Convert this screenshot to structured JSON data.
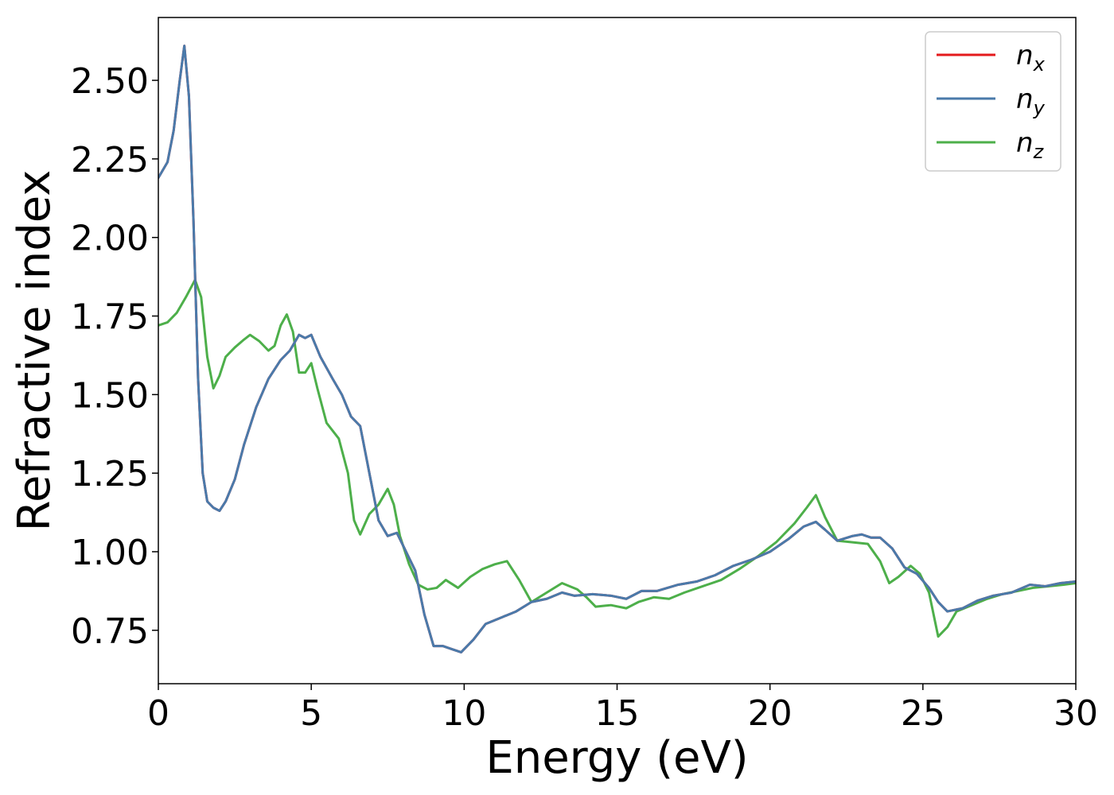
{
  "chart_data": {
    "type": "line",
    "title": "",
    "xlabel": "Energy (eV)",
    "ylabel": "Refractive index",
    "xlim": [
      0,
      30
    ],
    "ylim": [
      0.58,
      2.7
    ],
    "xticks": [
      0,
      5,
      10,
      15,
      20,
      25,
      30
    ],
    "xtick_labels": [
      "0",
      "5",
      "10",
      "15",
      "20",
      "25",
      "30"
    ],
    "yticks": [
      0.75,
      1.0,
      1.25,
      1.5,
      1.75,
      2.0,
      2.25,
      2.5
    ],
    "ytick_labels": [
      "0.75",
      "1.00",
      "1.25",
      "1.50",
      "1.75",
      "2.00",
      "2.25",
      "2.50"
    ],
    "grid": false,
    "legend_position": "top-right",
    "series": [
      {
        "name": "n",
        "sub": "x",
        "color": "#e41a1c",
        "points": [
          [
            0,
            2.19
          ],
          [
            0.3,
            2.24
          ],
          [
            0.5,
            2.34
          ],
          [
            0.7,
            2.5
          ],
          [
            0.85,
            2.61
          ],
          [
            1.0,
            2.45
          ],
          [
            1.15,
            2.05
          ],
          [
            1.3,
            1.55
          ],
          [
            1.45,
            1.25
          ],
          [
            1.6,
            1.16
          ],
          [
            1.8,
            1.14
          ],
          [
            2.0,
            1.13
          ],
          [
            2.2,
            1.16
          ],
          [
            2.5,
            1.23
          ],
          [
            2.8,
            1.34
          ],
          [
            3.2,
            1.46
          ],
          [
            3.6,
            1.55
          ],
          [
            4.0,
            1.61
          ],
          [
            4.3,
            1.64
          ],
          [
            4.6,
            1.69
          ],
          [
            4.8,
            1.68
          ],
          [
            5.0,
            1.69
          ],
          [
            5.3,
            1.62
          ],
          [
            5.7,
            1.55
          ],
          [
            6.0,
            1.5
          ],
          [
            6.3,
            1.43
          ],
          [
            6.6,
            1.4
          ],
          [
            6.8,
            1.3
          ],
          [
            7.0,
            1.2
          ],
          [
            7.2,
            1.1
          ],
          [
            7.5,
            1.05
          ],
          [
            7.8,
            1.06
          ],
          [
            8.1,
            1.0
          ],
          [
            8.4,
            0.94
          ],
          [
            8.7,
            0.8
          ],
          [
            9.0,
            0.7
          ],
          [
            9.3,
            0.7
          ],
          [
            9.6,
            0.69
          ],
          [
            9.9,
            0.68
          ],
          [
            10.3,
            0.72
          ],
          [
            10.7,
            0.77
          ],
          [
            11.2,
            0.79
          ],
          [
            11.7,
            0.81
          ],
          [
            12.2,
            0.84
          ],
          [
            12.7,
            0.85
          ],
          [
            13.2,
            0.87
          ],
          [
            13.6,
            0.86
          ],
          [
            14.2,
            0.865
          ],
          [
            14.8,
            0.86
          ],
          [
            15.3,
            0.85
          ],
          [
            15.8,
            0.875
          ],
          [
            16.3,
            0.875
          ],
          [
            17.0,
            0.895
          ],
          [
            17.6,
            0.905
          ],
          [
            18.2,
            0.925
          ],
          [
            18.8,
            0.955
          ],
          [
            19.4,
            0.975
          ],
          [
            20.0,
            1.0
          ],
          [
            20.6,
            1.04
          ],
          [
            21.1,
            1.08
          ],
          [
            21.5,
            1.095
          ],
          [
            21.8,
            1.07
          ],
          [
            22.2,
            1.035
          ],
          [
            22.7,
            1.05
          ],
          [
            23.0,
            1.055
          ],
          [
            23.3,
            1.045
          ],
          [
            23.6,
            1.045
          ],
          [
            24.0,
            1.01
          ],
          [
            24.4,
            0.95
          ],
          [
            24.8,
            0.93
          ],
          [
            25.2,
            0.885
          ],
          [
            25.5,
            0.84
          ],
          [
            25.8,
            0.81
          ],
          [
            26.3,
            0.82
          ],
          [
            26.8,
            0.845
          ],
          [
            27.3,
            0.86
          ],
          [
            27.9,
            0.87
          ],
          [
            28.5,
            0.895
          ],
          [
            29.0,
            0.89
          ],
          [
            29.5,
            0.9
          ],
          [
            30.0,
            0.905
          ]
        ]
      },
      {
        "name": "n",
        "sub": "y",
        "color": "#4a7aaa",
        "points": [
          [
            0,
            2.19
          ],
          [
            0.3,
            2.24
          ],
          [
            0.5,
            2.34
          ],
          [
            0.7,
            2.5
          ],
          [
            0.85,
            2.61
          ],
          [
            1.0,
            2.45
          ],
          [
            1.15,
            2.05
          ],
          [
            1.3,
            1.55
          ],
          [
            1.45,
            1.25
          ],
          [
            1.6,
            1.16
          ],
          [
            1.8,
            1.14
          ],
          [
            2.0,
            1.13
          ],
          [
            2.2,
            1.16
          ],
          [
            2.5,
            1.23
          ],
          [
            2.8,
            1.34
          ],
          [
            3.2,
            1.46
          ],
          [
            3.6,
            1.55
          ],
          [
            4.0,
            1.61
          ],
          [
            4.3,
            1.64
          ],
          [
            4.6,
            1.69
          ],
          [
            4.8,
            1.68
          ],
          [
            5.0,
            1.69
          ],
          [
            5.3,
            1.62
          ],
          [
            5.7,
            1.55
          ],
          [
            6.0,
            1.5
          ],
          [
            6.3,
            1.43
          ],
          [
            6.6,
            1.4
          ],
          [
            6.8,
            1.3
          ],
          [
            7.0,
            1.2
          ],
          [
            7.2,
            1.1
          ],
          [
            7.5,
            1.05
          ],
          [
            7.8,
            1.06
          ],
          [
            8.1,
            1.0
          ],
          [
            8.4,
            0.94
          ],
          [
            8.7,
            0.8
          ],
          [
            9.0,
            0.7
          ],
          [
            9.3,
            0.7
          ],
          [
            9.6,
            0.69
          ],
          [
            9.9,
            0.68
          ],
          [
            10.3,
            0.72
          ],
          [
            10.7,
            0.77
          ],
          [
            11.2,
            0.79
          ],
          [
            11.7,
            0.81
          ],
          [
            12.2,
            0.84
          ],
          [
            12.7,
            0.85
          ],
          [
            13.2,
            0.87
          ],
          [
            13.6,
            0.86
          ],
          [
            14.2,
            0.865
          ],
          [
            14.8,
            0.86
          ],
          [
            15.3,
            0.85
          ],
          [
            15.8,
            0.875
          ],
          [
            16.3,
            0.875
          ],
          [
            17.0,
            0.895
          ],
          [
            17.6,
            0.905
          ],
          [
            18.2,
            0.925
          ],
          [
            18.8,
            0.955
          ],
          [
            19.4,
            0.975
          ],
          [
            20.0,
            1.0
          ],
          [
            20.6,
            1.04
          ],
          [
            21.1,
            1.08
          ],
          [
            21.5,
            1.095
          ],
          [
            21.8,
            1.07
          ],
          [
            22.2,
            1.035
          ],
          [
            22.7,
            1.05
          ],
          [
            23.0,
            1.055
          ],
          [
            23.3,
            1.045
          ],
          [
            23.6,
            1.045
          ],
          [
            24.0,
            1.01
          ],
          [
            24.4,
            0.95
          ],
          [
            24.8,
            0.93
          ],
          [
            25.2,
            0.885
          ],
          [
            25.5,
            0.84
          ],
          [
            25.8,
            0.81
          ],
          [
            26.3,
            0.82
          ],
          [
            26.8,
            0.845
          ],
          [
            27.3,
            0.86
          ],
          [
            27.9,
            0.87
          ],
          [
            28.5,
            0.895
          ],
          [
            29.0,
            0.89
          ],
          [
            29.5,
            0.9
          ],
          [
            30.0,
            0.905
          ]
        ]
      },
      {
        "name": "n",
        "sub": "z",
        "color": "#4daf4a",
        "points": [
          [
            0,
            1.72
          ],
          [
            0.3,
            1.73
          ],
          [
            0.6,
            1.76
          ],
          [
            0.9,
            1.81
          ],
          [
            1.2,
            1.865
          ],
          [
            1.4,
            1.81
          ],
          [
            1.6,
            1.62
          ],
          [
            1.8,
            1.52
          ],
          [
            2.0,
            1.56
          ],
          [
            2.2,
            1.62
          ],
          [
            2.5,
            1.65
          ],
          [
            2.8,
            1.675
          ],
          [
            3.0,
            1.69
          ],
          [
            3.3,
            1.67
          ],
          [
            3.6,
            1.64
          ],
          [
            3.8,
            1.655
          ],
          [
            4.0,
            1.72
          ],
          [
            4.2,
            1.755
          ],
          [
            4.4,
            1.7
          ],
          [
            4.6,
            1.57
          ],
          [
            4.8,
            1.57
          ],
          [
            5.0,
            1.6
          ],
          [
            5.2,
            1.52
          ],
          [
            5.5,
            1.41
          ],
          [
            5.9,
            1.36
          ],
          [
            6.2,
            1.25
          ],
          [
            6.4,
            1.1
          ],
          [
            6.6,
            1.055
          ],
          [
            6.9,
            1.12
          ],
          [
            7.2,
            1.15
          ],
          [
            7.5,
            1.2
          ],
          [
            7.7,
            1.15
          ],
          [
            7.9,
            1.05
          ],
          [
            8.2,
            0.96
          ],
          [
            8.5,
            0.895
          ],
          [
            8.8,
            0.88
          ],
          [
            9.1,
            0.885
          ],
          [
            9.4,
            0.91
          ],
          [
            9.8,
            0.885
          ],
          [
            10.2,
            0.92
          ],
          [
            10.6,
            0.945
          ],
          [
            11.0,
            0.96
          ],
          [
            11.4,
            0.97
          ],
          [
            11.8,
            0.91
          ],
          [
            12.2,
            0.84
          ],
          [
            12.7,
            0.87
          ],
          [
            13.2,
            0.9
          ],
          [
            13.7,
            0.88
          ],
          [
            14.0,
            0.855
          ],
          [
            14.3,
            0.825
          ],
          [
            14.8,
            0.83
          ],
          [
            15.3,
            0.82
          ],
          [
            15.7,
            0.84
          ],
          [
            16.2,
            0.855
          ],
          [
            16.7,
            0.85
          ],
          [
            17.2,
            0.87
          ],
          [
            17.8,
            0.89
          ],
          [
            18.4,
            0.91
          ],
          [
            19.0,
            0.945
          ],
          [
            19.6,
            0.985
          ],
          [
            20.2,
            1.03
          ],
          [
            20.8,
            1.09
          ],
          [
            21.2,
            1.14
          ],
          [
            21.5,
            1.18
          ],
          [
            21.8,
            1.11
          ],
          [
            22.2,
            1.035
          ],
          [
            22.7,
            1.03
          ],
          [
            23.2,
            1.025
          ],
          [
            23.6,
            0.97
          ],
          [
            23.9,
            0.9
          ],
          [
            24.2,
            0.92
          ],
          [
            24.6,
            0.955
          ],
          [
            24.9,
            0.93
          ],
          [
            25.2,
            0.87
          ],
          [
            25.5,
            0.73
          ],
          [
            25.8,
            0.76
          ],
          [
            26.1,
            0.81
          ],
          [
            26.6,
            0.83
          ],
          [
            27.1,
            0.85
          ],
          [
            27.6,
            0.865
          ],
          [
            28.1,
            0.875
          ],
          [
            28.6,
            0.885
          ],
          [
            29.1,
            0.89
          ],
          [
            29.6,
            0.895
          ],
          [
            30.0,
            0.9
          ]
        ]
      }
    ]
  }
}
